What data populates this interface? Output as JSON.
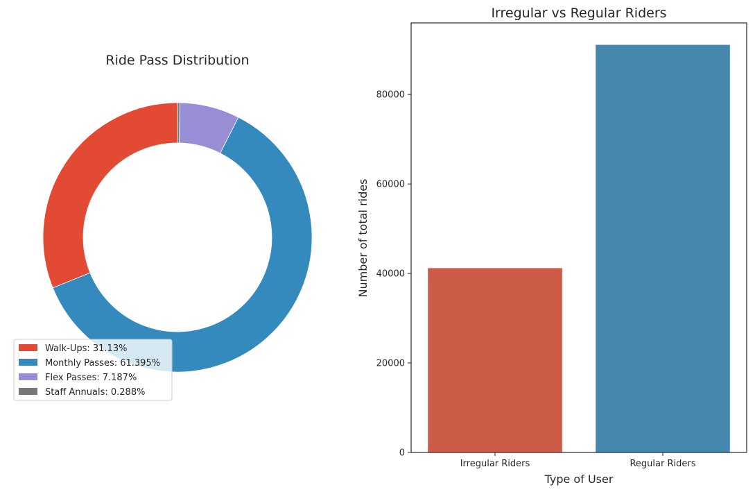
{
  "chart_data": [
    {
      "type": "pie",
      "title": "Ride Pass Distribution",
      "legend_position": "lower-left",
      "slices": [
        {
          "label": "Walk-Ups: 31.13%",
          "value": 31.13,
          "color": "#E24A33"
        },
        {
          "label": "Monthly Passes: 61.395%",
          "value": 61.395,
          "color": "#348ABD"
        },
        {
          "label": "Flex Passes: 7.187%",
          "value": 7.187,
          "color": "#988ED5"
        },
        {
          "label": "Staff Annuals: 0.288%",
          "value": 0.288,
          "color": "#777777"
        }
      ]
    },
    {
      "type": "bar",
      "title": "Irregular vs Regular Riders",
      "xlabel": "Type of User",
      "ylabel": "Number of total rides",
      "categories": [
        "Irregular Riders",
        "Regular Riders"
      ],
      "values": [
        41200,
        91100
      ],
      "colors": [
        "#CC5B48",
        "#4687AE"
      ],
      "ylim": [
        0,
        96000
      ],
      "yticks": [
        0,
        20000,
        40000,
        60000,
        80000
      ],
      "ytick_labels": [
        "0",
        "20000",
        "40000",
        "60000",
        "80000"
      ],
      "grid": false
    }
  ]
}
